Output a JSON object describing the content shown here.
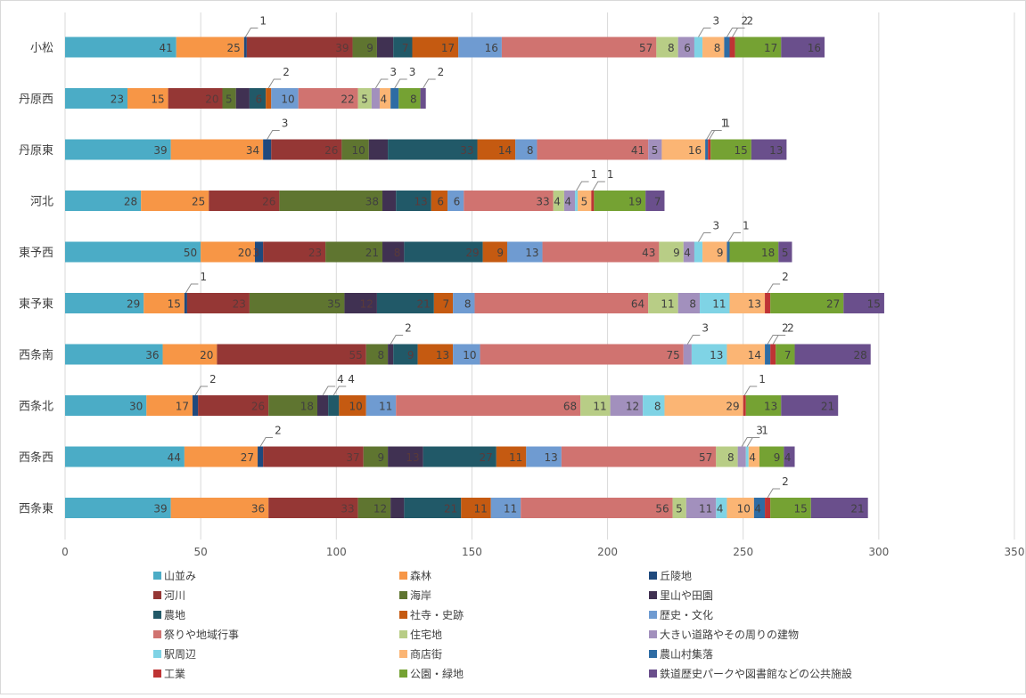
{
  "chart_data": {
    "type": "bar",
    "orientation": "horizontal",
    "stacked": true,
    "grid": true,
    "legend_position": "bottom",
    "xlim": [
      0,
      350
    ],
    "x_ticks": [
      "0",
      "50",
      "100",
      "150",
      "200",
      "250",
      "300",
      "350"
    ],
    "categories": [
      "小松",
      "丹原西",
      "丹原東",
      "河北",
      "東予西",
      "東予東",
      "西条南",
      "西条北",
      "西条西",
      "西条東"
    ],
    "series": [
      {
        "name": "山並み",
        "color": "#4bacc6",
        "values": [
          41,
          23,
          39,
          28,
          50,
          29,
          36,
          30,
          44,
          39
        ]
      },
      {
        "name": "森林",
        "color": "#f79646",
        "values": [
          25,
          15,
          34,
          25,
          20,
          15,
          20,
          17,
          27,
          36
        ]
      },
      {
        "name": "丘陵地",
        "color": "#1f497d",
        "values": [
          1,
          0,
          3,
          0,
          3,
          1,
          0,
          2,
          2,
          0
        ]
      },
      {
        "name": "河川",
        "color": "#953735",
        "values": [
          39,
          20,
          26,
          26,
          23,
          23,
          55,
          26,
          37,
          33
        ]
      },
      {
        "name": "海岸",
        "color": "#5f7530",
        "values": [
          9,
          5,
          10,
          38,
          21,
          35,
          8,
          18,
          9,
          12
        ]
      },
      {
        "name": "里山や田園",
        "color": "#403152",
        "values": [
          6,
          5,
          7,
          5,
          8,
          12,
          2,
          4,
          13,
          5
        ]
      },
      {
        "name": "農地",
        "color": "#215968",
        "values": [
          7,
          6,
          33,
          13,
          29,
          21,
          9,
          4,
          27,
          21
        ]
      },
      {
        "name": "社寺・史跡",
        "color": "#c55a11",
        "values": [
          17,
          2,
          14,
          6,
          9,
          7,
          13,
          10,
          11,
          11
        ]
      },
      {
        "name": "歴史・文化",
        "color": "#6f9bd1",
        "values": [
          16,
          10,
          8,
          6,
          13,
          8,
          10,
          11,
          13,
          11
        ]
      },
      {
        "name": "祭りや地域行事",
        "color": "#d07370",
        "values": [
          57,
          22,
          41,
          33,
          43,
          64,
          75,
          68,
          57,
          56
        ]
      },
      {
        "name": "住宅地",
        "color": "#b8cd86",
        "values": [
          8,
          5,
          0,
          4,
          9,
          11,
          0,
          11,
          8,
          5
        ]
      },
      {
        "name": "大きい道路やその周りの建物",
        "color": "#a290bd",
        "values": [
          6,
          3,
          5,
          4,
          4,
          8,
          3,
          12,
          3,
          11
        ]
      },
      {
        "name": "駅周辺",
        "color": "#7fd3e5",
        "values": [
          3,
          0,
          0,
          1,
          3,
          11,
          13,
          8,
          1,
          4
        ]
      },
      {
        "name": "商店街",
        "color": "#fbb574",
        "values": [
          8,
          4,
          16,
          5,
          9,
          13,
          14,
          29,
          4,
          10
        ]
      },
      {
        "name": "農山村集落",
        "color": "#2e6ca4",
        "values": [
          2,
          3,
          1,
          0,
          1,
          0,
          2,
          0,
          0,
          4
        ]
      },
      {
        "name": "工業",
        "color": "#be3434",
        "values": [
          2,
          0,
          1,
          1,
          0,
          2,
          2,
          1,
          0,
          2
        ]
      },
      {
        "name": "公園・緑地",
        "color": "#75a233",
        "values": [
          17,
          8,
          15,
          19,
          18,
          27,
          7,
          13,
          9,
          15
        ]
      },
      {
        "name": "鉄道歴史パークや図書館などの公共施設",
        "color": "#6a4f8c",
        "values": [
          16,
          2,
          13,
          7,
          5,
          15,
          28,
          21,
          4,
          21
        ]
      }
    ],
    "labels": [
      [
        {
          "s": 0,
          "t": "41"
        },
        {
          "s": 1,
          "t": "25"
        },
        {
          "s": 2,
          "t": "1",
          "c": true
        },
        {
          "s": 3,
          "t": "39"
        },
        {
          "s": 4,
          "t": "9"
        },
        {
          "s": 6,
          "t": "7"
        },
        {
          "s": 7,
          "t": "17"
        },
        {
          "s": 8,
          "t": "16"
        },
        {
          "s": 9,
          "t": "57"
        },
        {
          "s": 10,
          "t": "8"
        },
        {
          "s": 11,
          "t": "6"
        },
        {
          "s": 12,
          "t": "3",
          "c": true
        },
        {
          "s": 13,
          "t": "8"
        },
        {
          "s": 14,
          "t": "2",
          "c": true
        },
        {
          "s": 15,
          "t": "2",
          "c": true
        },
        {
          "s": 16,
          "t": "17"
        },
        {
          "s": 17,
          "t": "16"
        }
      ],
      [
        {
          "s": 0,
          "t": "23"
        },
        {
          "s": 1,
          "t": "15"
        },
        {
          "s": 3,
          "t": "20"
        },
        {
          "s": 4,
          "t": "5"
        },
        {
          "s": 6,
          "t": "6"
        },
        {
          "s": 7,
          "t": "2",
          "c": true
        },
        {
          "s": 8,
          "t": "10"
        },
        {
          "s": 9,
          "t": "22"
        },
        {
          "s": 10,
          "t": "5"
        },
        {
          "s": 11,
          "t": "3",
          "c": true
        },
        {
          "s": 13,
          "t": "4"
        },
        {
          "s": 14,
          "t": "3",
          "c": true
        },
        {
          "s": 16,
          "t": "8"
        },
        {
          "s": 17,
          "t": "2",
          "c": true
        }
      ],
      [
        {
          "s": 0,
          "t": "39"
        },
        {
          "s": 1,
          "t": "34"
        },
        {
          "s": 2,
          "t": "3",
          "c": true
        },
        {
          "s": 3,
          "t": "26"
        },
        {
          "s": 4,
          "t": "10"
        },
        {
          "s": 6,
          "t": "33"
        },
        {
          "s": 7,
          "t": "14"
        },
        {
          "s": 8,
          "t": "8"
        },
        {
          "s": 9,
          "t": "41"
        },
        {
          "s": 11,
          "t": "5"
        },
        {
          "s": 13,
          "t": "16"
        },
        {
          "s": 14,
          "t": "1",
          "c": true
        },
        {
          "s": 15,
          "t": "1",
          "c": true
        },
        {
          "s": 16,
          "t": "15"
        },
        {
          "s": 17,
          "t": "13"
        }
      ],
      [
        {
          "s": 0,
          "t": "28"
        },
        {
          "s": 1,
          "t": "25"
        },
        {
          "s": 3,
          "t": "26"
        },
        {
          "s": 4,
          "t": "38"
        },
        {
          "s": 6,
          "t": "13"
        },
        {
          "s": 7,
          "t": "6"
        },
        {
          "s": 8,
          "t": "6"
        },
        {
          "s": 9,
          "t": "33"
        },
        {
          "s": 10,
          "t": "4"
        },
        {
          "s": 11,
          "t": "4"
        },
        {
          "s": 12,
          "t": "1",
          "c": true
        },
        {
          "s": 13,
          "t": "5"
        },
        {
          "s": 15,
          "t": "1",
          "c": true
        },
        {
          "s": 16,
          "t": "19"
        },
        {
          "s": 17,
          "t": "7"
        }
      ],
      [
        {
          "s": 0,
          "t": "50"
        },
        {
          "s": 1,
          "t": "20"
        },
        {
          "s": 2,
          "t": "3"
        },
        {
          "s": 3,
          "t": "23"
        },
        {
          "s": 4,
          "t": "21"
        },
        {
          "s": 5,
          "t": "8"
        },
        {
          "s": 6,
          "t": "29"
        },
        {
          "s": 7,
          "t": "9"
        },
        {
          "s": 8,
          "t": "13"
        },
        {
          "s": 9,
          "t": "43"
        },
        {
          "s": 10,
          "t": "9"
        },
        {
          "s": 11,
          "t": "4"
        },
        {
          "s": 12,
          "t": "3",
          "c": true
        },
        {
          "s": 13,
          "t": "9"
        },
        {
          "s": 14,
          "t": "1",
          "c": true
        },
        {
          "s": 16,
          "t": "18"
        },
        {
          "s": 17,
          "t": "5"
        }
      ],
      [
        {
          "s": 0,
          "t": "29"
        },
        {
          "s": 1,
          "t": "15"
        },
        {
          "s": 2,
          "t": "1",
          "c": true
        },
        {
          "s": 3,
          "t": "23"
        },
        {
          "s": 4,
          "t": "35"
        },
        {
          "s": 5,
          "t": "12"
        },
        {
          "s": 6,
          "t": "21"
        },
        {
          "s": 7,
          "t": "7"
        },
        {
          "s": 8,
          "t": "8"
        },
        {
          "s": 9,
          "t": "64"
        },
        {
          "s": 10,
          "t": "11"
        },
        {
          "s": 11,
          "t": "8"
        },
        {
          "s": 12,
          "t": "11"
        },
        {
          "s": 13,
          "t": "13"
        },
        {
          "s": 15,
          "t": "2",
          "c": true
        },
        {
          "s": 16,
          "t": "27"
        },
        {
          "s": 17,
          "t": "15"
        }
      ],
      [
        {
          "s": 0,
          "t": "36"
        },
        {
          "s": 1,
          "t": "20"
        },
        {
          "s": 3,
          "t": "55"
        },
        {
          "s": 4,
          "t": "8"
        },
        {
          "s": 5,
          "t": "2",
          "c": true
        },
        {
          "s": 6,
          "t": "9"
        },
        {
          "s": 7,
          "t": "13"
        },
        {
          "s": 8,
          "t": "10"
        },
        {
          "s": 9,
          "t": "75"
        },
        {
          "s": 11,
          "t": "3",
          "c": true
        },
        {
          "s": 12,
          "t": "13"
        },
        {
          "s": 13,
          "t": "14"
        },
        {
          "s": 14,
          "t": "2",
          "c": true
        },
        {
          "s": 15,
          "t": "2",
          "c": true
        },
        {
          "s": 16,
          "t": "7"
        },
        {
          "s": 17,
          "t": "28"
        }
      ],
      [
        {
          "s": 0,
          "t": "30"
        },
        {
          "s": 1,
          "t": "17"
        },
        {
          "s": 2,
          "t": "2",
          "c": true
        },
        {
          "s": 3,
          "t": "26"
        },
        {
          "s": 4,
          "t": "18"
        },
        {
          "s": 5,
          "t": "4",
          "c": true
        },
        {
          "s": 6,
          "t": "4",
          "c": true
        },
        {
          "s": 7,
          "t": "10"
        },
        {
          "s": 8,
          "t": "11"
        },
        {
          "s": 9,
          "t": "68"
        },
        {
          "s": 10,
          "t": "11"
        },
        {
          "s": 11,
          "t": "12"
        },
        {
          "s": 12,
          "t": "8"
        },
        {
          "s": 13,
          "t": "29"
        },
        {
          "s": 15,
          "t": "1",
          "c": true
        },
        {
          "s": 16,
          "t": "13"
        },
        {
          "s": 17,
          "t": "21"
        }
      ],
      [
        {
          "s": 0,
          "t": "44"
        },
        {
          "s": 1,
          "t": "27"
        },
        {
          "s": 2,
          "t": "2",
          "c": true
        },
        {
          "s": 3,
          "t": "37"
        },
        {
          "s": 4,
          "t": "9"
        },
        {
          "s": 5,
          "t": "13"
        },
        {
          "s": 6,
          "t": "27"
        },
        {
          "s": 7,
          "t": "11"
        },
        {
          "s": 8,
          "t": "13"
        },
        {
          "s": 9,
          "t": "57"
        },
        {
          "s": 10,
          "t": "8"
        },
        {
          "s": 11,
          "t": "3",
          "c": true
        },
        {
          "s": 12,
          "t": "1",
          "c": true
        },
        {
          "s": 13,
          "t": "4"
        },
        {
          "s": 16,
          "t": "9"
        },
        {
          "s": 17,
          "t": "4"
        }
      ],
      [
        {
          "s": 0,
          "t": "39"
        },
        {
          "s": 1,
          "t": "36"
        },
        {
          "s": 3,
          "t": "33"
        },
        {
          "s": 4,
          "t": "12"
        },
        {
          "s": 6,
          "t": "21"
        },
        {
          "s": 7,
          "t": "11"
        },
        {
          "s": 8,
          "t": "11"
        },
        {
          "s": 9,
          "t": "56"
        },
        {
          "s": 10,
          "t": "5"
        },
        {
          "s": 11,
          "t": "11"
        },
        {
          "s": 12,
          "t": "4"
        },
        {
          "s": 13,
          "t": "10"
        },
        {
          "s": 14,
          "t": "4"
        },
        {
          "s": 15,
          "t": "2",
          "c": true
        },
        {
          "s": 16,
          "t": "15"
        },
        {
          "s": 17,
          "t": "21"
        }
      ]
    ]
  }
}
